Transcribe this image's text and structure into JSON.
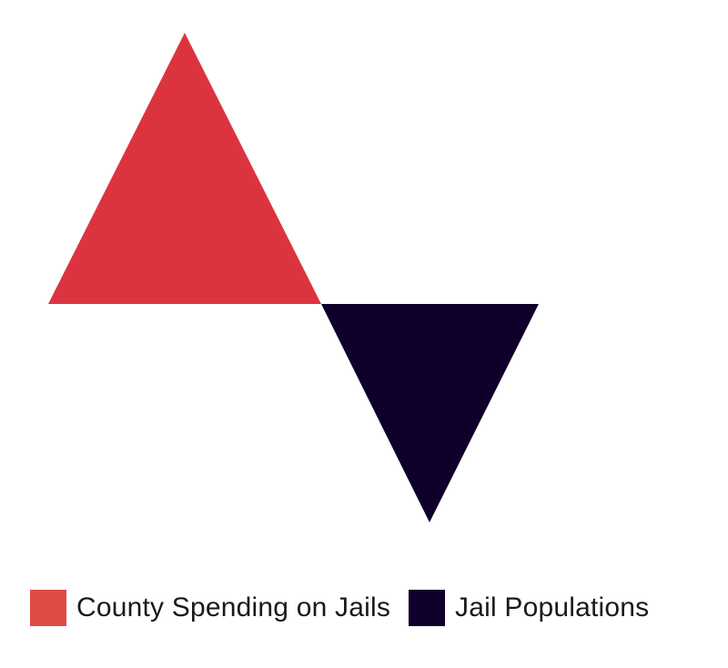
{
  "shapes": [
    {
      "name": "triangle-up",
      "direction": "up",
      "color": "#dc343f"
    },
    {
      "name": "triangle-down",
      "direction": "down",
      "color": "#0e002a"
    }
  ],
  "legend": {
    "items": [
      {
        "label": "County Spending on Jails",
        "color": "#df4b44"
      },
      {
        "label": "Jail Populations",
        "color": "#0e002a"
      }
    ]
  }
}
